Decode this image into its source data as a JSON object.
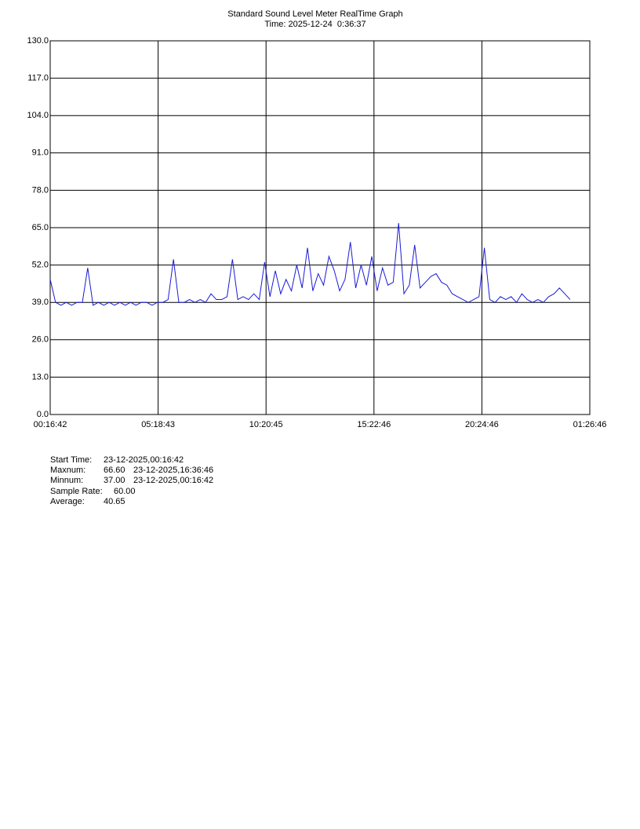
{
  "chart_data": {
    "type": "line",
    "title": "Standard Sound Level Meter RealTime Graph",
    "subtitle": "Time: 2025-12-24  0:36:37",
    "color": "#1a1ad6",
    "x": [
      0,
      15,
      30,
      45,
      60,
      75,
      90,
      105,
      120,
      135,
      150,
      165,
      180,
      195,
      210,
      225,
      240,
      255,
      270,
      285,
      300,
      315,
      330,
      345,
      360,
      375,
      390,
      405,
      420,
      435,
      450,
      465,
      480,
      495,
      510,
      525,
      540,
      555,
      570,
      585,
      600,
      615,
      630,
      645,
      660,
      675,
      690,
      705,
      720,
      735,
      750,
      765,
      780,
      795,
      810,
      825,
      840,
      855,
      870,
      885,
      900,
      915,
      930,
      945,
      960,
      975,
      990,
      1005,
      1020,
      1035,
      1050,
      1065,
      1080,
      1095,
      1110,
      1125,
      1140,
      1155,
      1170,
      1185,
      1200,
      1215,
      1230,
      1245,
      1260,
      1275,
      1290,
      1305,
      1320,
      1335,
      1350,
      1365,
      1380,
      1395,
      1410,
      1425,
      1440,
      1455
    ],
    "values": [
      47,
      39,
      38,
      39,
      38,
      39,
      39,
      51,
      38,
      39,
      38,
      39,
      38,
      39,
      38,
      39,
      38,
      39,
      39,
      38,
      39,
      39,
      40,
      54,
      39,
      39,
      40,
      39,
      40,
      39,
      42,
      40,
      40,
      41,
      54,
      40,
      41,
      40,
      42,
      40,
      53,
      41,
      50,
      42,
      47,
      43,
      52,
      44,
      58,
      43,
      49,
      45,
      55,
      50,
      43,
      47,
      60,
      44,
      52,
      45,
      55,
      43,
      51,
      45,
      46,
      66.6,
      42,
      45,
      59,
      44,
      46,
      48,
      49,
      46,
      45,
      42,
      41,
      40,
      39,
      40,
      41,
      58,
      40,
      39,
      41,
      40,
      41,
      39,
      42,
      40,
      39,
      40,
      39,
      41,
      42,
      44,
      42,
      40
    ],
    "xlim": [
      0,
      1510.07
    ],
    "xticks": [
      {
        "value": 0,
        "label": "00:16:42"
      },
      {
        "value": 302.02,
        "label": "05:18:43"
      },
      {
        "value": 604.05,
        "label": "10:20:45"
      },
      {
        "value": 906.07,
        "label": "15:22:46"
      },
      {
        "value": 1208.07,
        "label": "20:24:46"
      },
      {
        "value": 1510.07,
        "label": "01:26:46"
      }
    ],
    "ylim": [
      0,
      130
    ],
    "yticks": [
      {
        "value": 0,
        "label": "0.0"
      },
      {
        "value": 13,
        "label": "13.0"
      },
      {
        "value": 26,
        "label": "26.0"
      },
      {
        "value": 39,
        "label": "39.0"
      },
      {
        "value": 52,
        "label": "52.0"
      },
      {
        "value": 65,
        "label": "65.0"
      },
      {
        "value": 78,
        "label": "78.0"
      },
      {
        "value": 91,
        "label": "91.0"
      },
      {
        "value": 104,
        "label": "104.0"
      },
      {
        "value": 117,
        "label": "117.0"
      },
      {
        "value": 130,
        "label": "130.0"
      }
    ],
    "grid": true
  },
  "stats": [
    [
      "Start Time:",
      "23-12-2025,00:16:42"
    ],
    [
      "Maxnum:",
      "66.60",
      "23-12-2025,16:36:46"
    ],
    [
      "Minnum:",
      "37.00",
      "23-12-2025,00:16:42"
    ],
    [
      "Sample Rate:",
      "60.00"
    ],
    [
      "Average:",
      "40.65"
    ]
  ]
}
